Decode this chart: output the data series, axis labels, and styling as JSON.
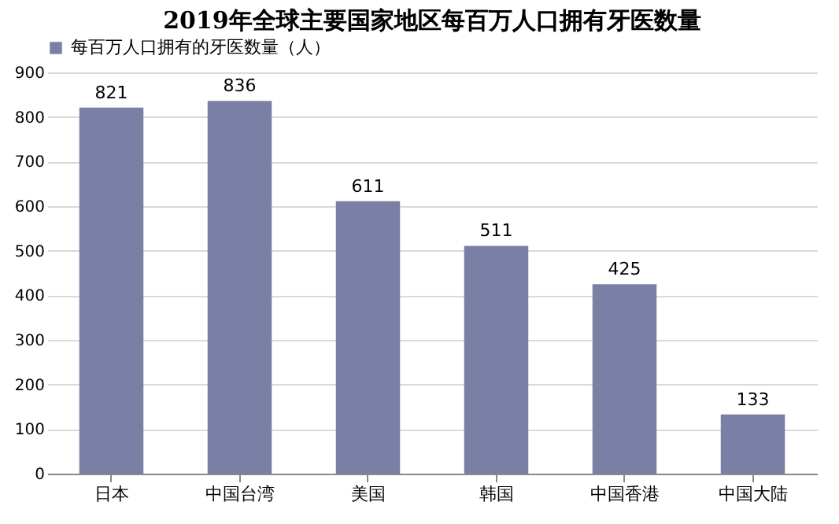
{
  "chart_data": {
    "type": "bar",
    "title": "2019年全球主要国家地区每百万人口拥有牙医数量",
    "categories": [
      "日本",
      "中国台湾",
      "美国",
      "韩国",
      "中国香港",
      "中国大陆"
    ],
    "series": [
      {
        "name": "每百万人口拥有的牙医数量（人）",
        "color": "#7b7fa5",
        "values": [
          821,
          836,
          611,
          511,
          425,
          133
        ]
      }
    ],
    "ylim": [
      0,
      900
    ],
    "yticks": [
      0,
      100,
      200,
      300,
      400,
      500,
      600,
      700,
      800,
      900
    ],
    "grid": "y",
    "legend": "top",
    "data_labels": true
  }
}
